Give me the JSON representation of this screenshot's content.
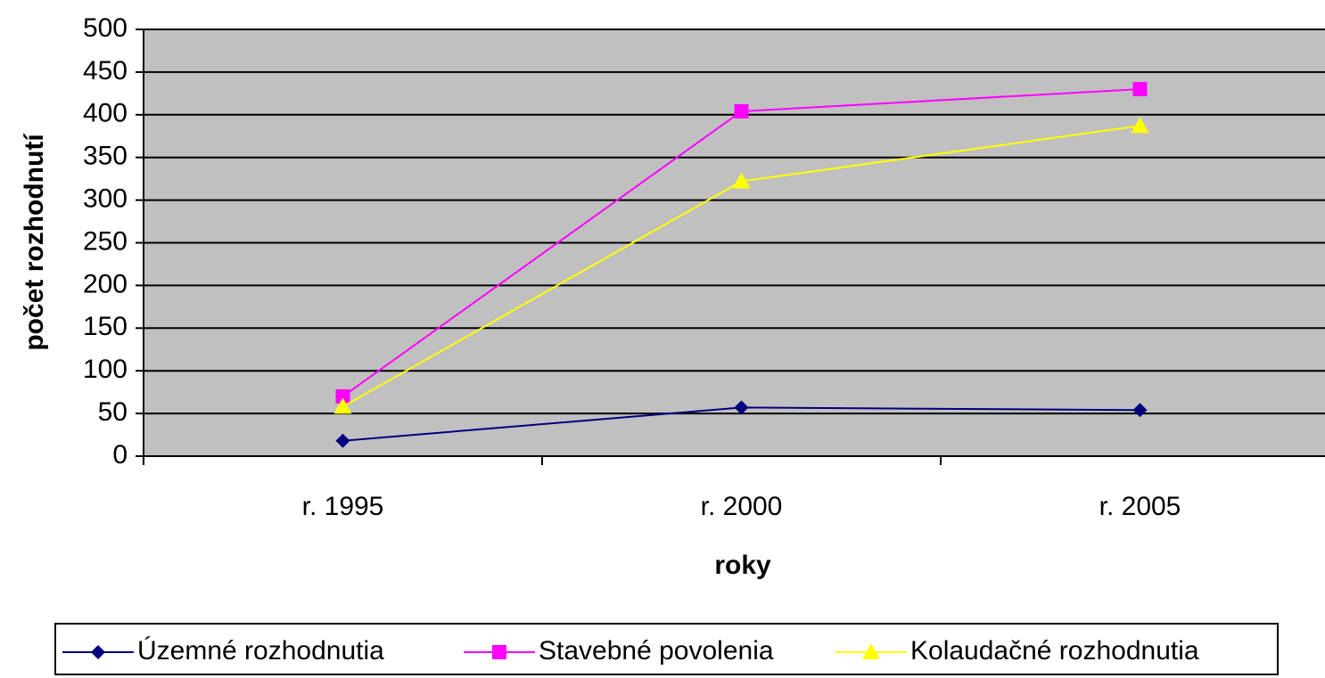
{
  "chart_data": {
    "type": "line",
    "x_label": "roky",
    "y_label": "počet rozhodnutí",
    "categories": [
      "r. 1995",
      "r. 2000",
      "r. 2005"
    ],
    "series": [
      {
        "name": "Územné rozhodnutia",
        "color": "#000080",
        "marker": "diamond",
        "values": [
          18,
          57,
          54
        ]
      },
      {
        "name": "Stavebné povolenia",
        "color": "#ff00ff",
        "marker": "square",
        "values": [
          70,
          404,
          430
        ]
      },
      {
        "name": "Kolaudačné rozhodnutia",
        "color": "#ffff00",
        "marker": "triangle",
        "values": [
          58,
          322,
          387
        ]
      }
    ],
    "ylim": [
      0,
      500
    ],
    "yticks": [
      0,
      50,
      100,
      150,
      200,
      250,
      300,
      350,
      400,
      450,
      500
    ],
    "grid": true,
    "legend": "bottom",
    "plot_background": "#c0c0c0"
  }
}
